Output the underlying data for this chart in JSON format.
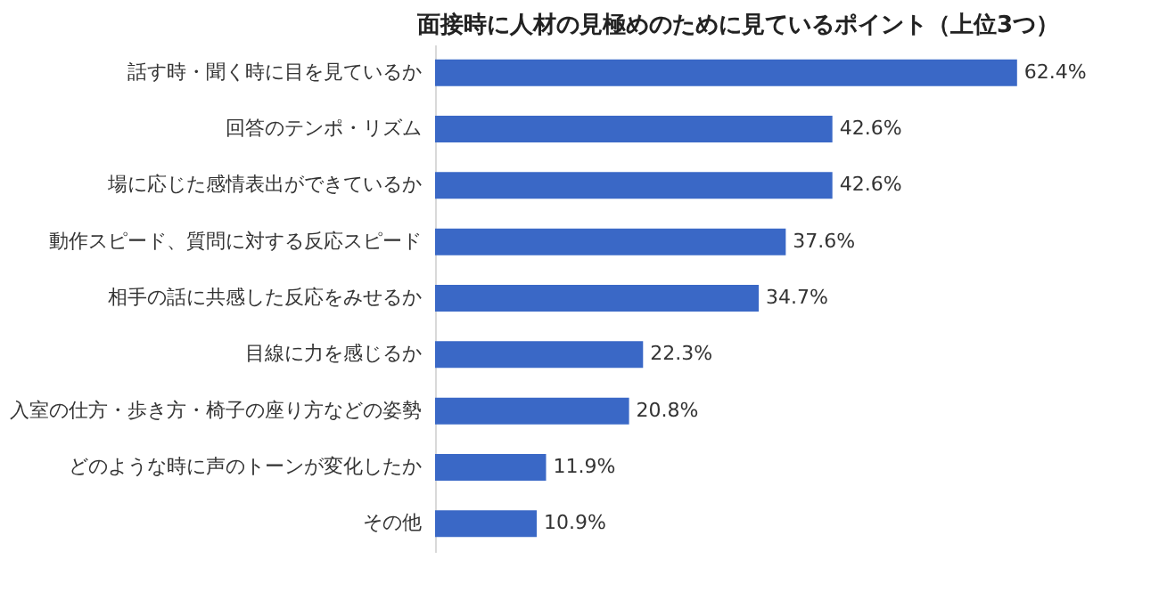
{
  "chart_data": {
    "type": "bar",
    "orientation": "horizontal",
    "title": "面接時に人材の見極めのために見ているポイント（上位3つ）",
    "categories": [
      "話す時・聞く時に目を見ているか",
      "回答のテンポ・リズム",
      "場に応じた感情表出ができているか",
      "動作スピード、質問に対する反応スピード",
      "相手の話に共感した反応をみせるか",
      "目線に力を感じるか",
      "入室の仕方・歩き方・椅子の座り方などの姿勢",
      "どのような時に声のトーンが変化したか",
      "その他"
    ],
    "values": [
      62.4,
      42.6,
      42.6,
      37.6,
      34.7,
      22.3,
      20.8,
      11.9,
      10.9
    ],
    "value_labels": [
      "62.4%",
      "42.6%",
      "42.6%",
      "37.6%",
      "34.7%",
      "22.3%",
      "20.8%",
      "11.9%",
      "10.9%"
    ],
    "color": "#3a68c6",
    "tick_labels": "y",
    "grid": false
  }
}
